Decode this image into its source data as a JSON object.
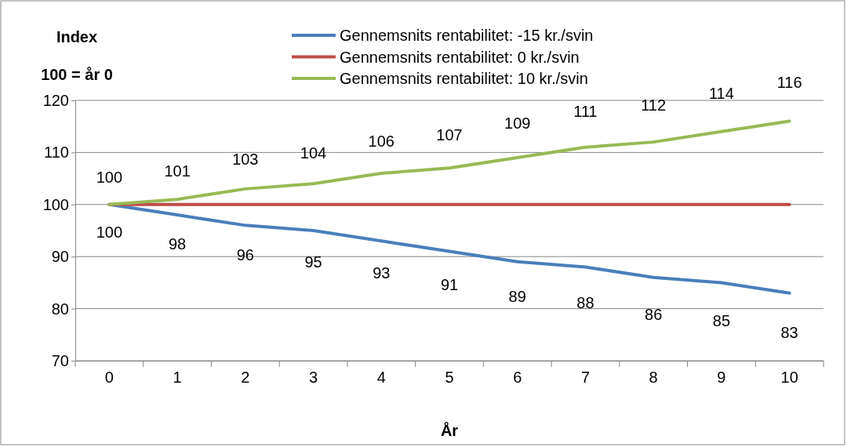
{
  "chart_data": {
    "type": "line",
    "ylabel": "Index",
    "xlabel": "År",
    "annotations": [
      "100 = år 0"
    ],
    "categories": [
      "0",
      "1",
      "2",
      "3",
      "4",
      "5",
      "6",
      "7",
      "8",
      "9",
      "10"
    ],
    "series": [
      {
        "name": "Gennemsnits rentabilitet: -15 kr./svin",
        "color": "#4a7ebb",
        "values": [
          100,
          98,
          96,
          95,
          93,
          91,
          89,
          88,
          86,
          85,
          83
        ],
        "value_labels": [
          "100",
          "98",
          "96",
          "95",
          "93",
          "91",
          "89",
          "88",
          "86",
          "85",
          "83"
        ]
      },
      {
        "name": "Gennemsnits rentabilitet: 0 kr./svin",
        "color": "#be4b48",
        "values": [
          100,
          100,
          100,
          100,
          100,
          100,
          100,
          100,
          100,
          100,
          100
        ]
      },
      {
        "name": "Gennemsnits rentabilitet: 10 kr./svin",
        "color": "#98b954",
        "values": [
          100,
          101,
          103,
          104,
          106,
          107,
          109,
          111,
          112,
          114,
          116
        ],
        "value_labels": [
          "100",
          "101",
          "103",
          "104",
          "106",
          "107",
          "109",
          "111",
          "112",
          "114",
          "116"
        ]
      }
    ],
    "ylim": [
      70,
      120
    ],
    "yticks": [
      70,
      80,
      90,
      100,
      110,
      120
    ],
    "grid": "y",
    "legend": "top",
    "marker": "none",
    "line_style": "solid"
  }
}
